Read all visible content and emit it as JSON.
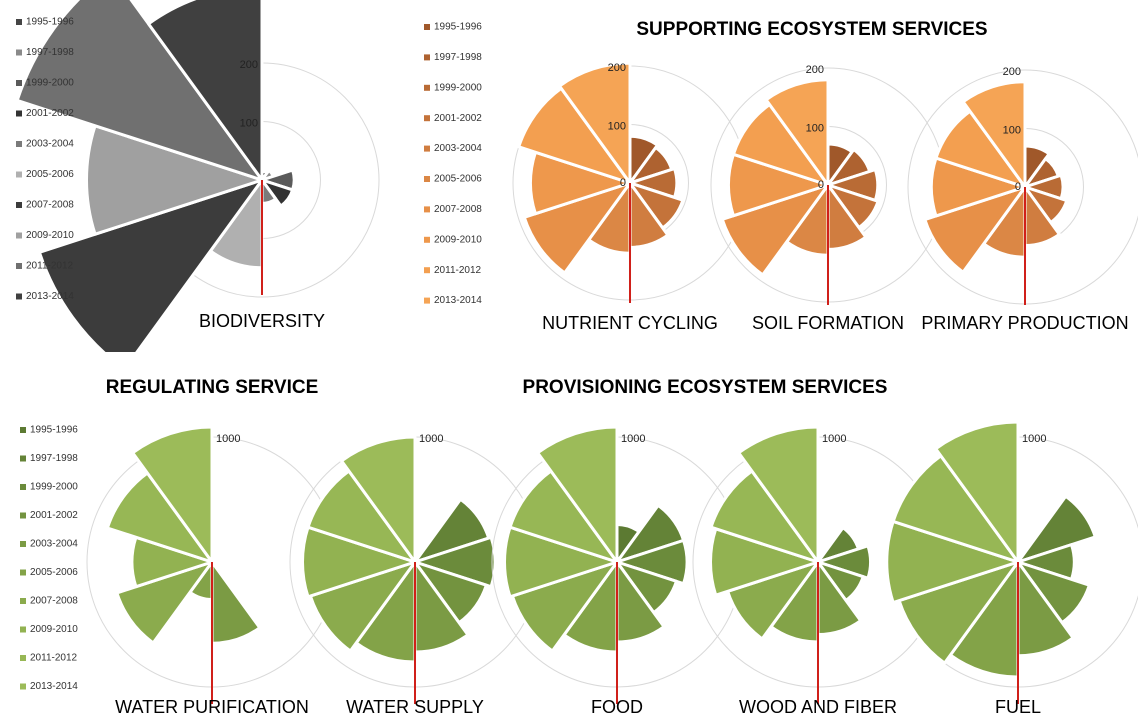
{
  "headings": [
    "SUPPORTING ECOSYSTEM SERVICES",
    "REGULATING SERVICE",
    "PROVISIONING ECOSYSTEM SERVICES"
  ],
  "chart_data": [
    {
      "type": "polar-bar",
      "title": "BIODIVERSITY",
      "categories": [
        "1995-1996",
        "1997-1998",
        "1999-2000",
        "2001-2002",
        "2003-2004",
        "2005-2006",
        "2007-2008",
        "2009-2010",
        "2011-2012",
        "2013-2014"
      ],
      "colors": [
        "#454545",
        "#8a8a8a",
        "#5a5a5a",
        "#333333",
        "#7a7a7a",
        "#b0b0b0",
        "#3c3c3c",
        "#a0a0a0",
        "#707070",
        "#404040"
      ],
      "values": [
        15,
        20,
        55,
        55,
        40,
        150,
        400,
        300,
        440,
        330
      ],
      "ylim": [
        0,
        200
      ],
      "yticks": [
        100,
        200
      ]
    },
    {
      "type": "polar-bar",
      "title": "NUTRIENT CYCLING",
      "categories": [
        "1995-1996",
        "1997-1998",
        "1999-2000",
        "2001-2002",
        "2003-2004",
        "2005-2006",
        "2007-2008",
        "2009-2010",
        "2011-2012",
        "2013-2014"
      ],
      "colors": [
        "#a0582a",
        "#ae6230",
        "#b96b35",
        "#c4733a",
        "#d07d40",
        "#db8745",
        "#e79048",
        "#ee984c",
        "#f39f50",
        "#f5a455"
      ],
      "values": [
        80,
        75,
        80,
        95,
        110,
        120,
        190,
        170,
        200,
        205
      ],
      "ylim": [
        0,
        200
      ],
      "yticks": [
        0,
        100,
        200
      ]
    },
    {
      "type": "polar-bar",
      "title": "SOIL FORMATION",
      "categories": [
        "1995-1996",
        "1997-1998",
        "1999-2000",
        "2001-2002",
        "2003-2004",
        "2005-2006",
        "2007-2008",
        "2009-2010",
        "2011-2012",
        "2013-2014"
      ],
      "colors": [
        "#a0582a",
        "#ae6230",
        "#b96b35",
        "#c4733a",
        "#d07d40",
        "#db8745",
        "#e79048",
        "#ee984c",
        "#f39f50",
        "#f5a455"
      ],
      "values": [
        70,
        75,
        85,
        90,
        110,
        120,
        190,
        170,
        170,
        180
      ],
      "ylim": [
        0,
        200
      ],
      "yticks": [
        0,
        100,
        200
      ]
    },
    {
      "type": "polar-bar",
      "title": "PRIMARY PRODUCTION",
      "categories": [
        "1995-1996",
        "1997-1998",
        "1999-2000",
        "2001-2002",
        "2003-2004",
        "2005-2006",
        "2007-2008",
        "2009-2010",
        "2011-2012",
        "2013-2014"
      ],
      "colors": [
        "#a0582a",
        "#ae6230",
        "#b96b35",
        "#c4733a",
        "#d07d40",
        "#db8745",
        "#e79048",
        "#ee984c",
        "#f39f50",
        "#f5a455"
      ],
      "values": [
        70,
        60,
        65,
        75,
        100,
        120,
        180,
        160,
        160,
        180
      ],
      "ylim": [
        0,
        200
      ],
      "yticks": [
        0,
        100,
        200
      ]
    },
    {
      "type": "polar-bar",
      "title": "WATER PURIFICATION",
      "categories": [
        "1995-1996",
        "1997-1998",
        "1999-2000",
        "2001-2002",
        "2003-2004",
        "2005-2006",
        "2007-2008",
        "2009-2010",
        "2011-2012",
        "2013-2014"
      ],
      "colors": [
        "#5c7a32",
        "#648337",
        "#6b8b3b",
        "#73933f",
        "#7b9b44",
        "#83a348",
        "#8bab4d",
        "#92b251",
        "#97b755",
        "#9cbb59"
      ],
      "values": [
        0,
        0,
        0,
        0,
        650,
        300,
        800,
        640,
        880,
        1080
      ],
      "ylim": [
        0,
        1000
      ],
      "yticks": [
        1000
      ]
    },
    {
      "type": "polar-bar",
      "title": "WATER SUPPLY",
      "categories": [
        "1995-1996",
        "1997-1998",
        "1999-2000",
        "2001-2002",
        "2003-2004",
        "2005-2006",
        "2007-2008",
        "2009-2010",
        "2011-2012",
        "2013-2014"
      ],
      "colors": [
        "#5c7a32",
        "#648337",
        "#6b8b3b",
        "#73933f",
        "#7b9b44",
        "#83a348",
        "#8bab4d",
        "#92b251",
        "#97b755",
        "#9cbb59"
      ],
      "values": [
        0,
        620,
        640,
        600,
        720,
        800,
        880,
        900,
        900,
        1000
      ],
      "ylim": [
        0,
        1000
      ],
      "yticks": [
        1000
      ]
    },
    {
      "type": "polar-bar",
      "title": "FOOD",
      "categories": [
        "1995-1996",
        "1997-1998",
        "1999-2000",
        "2001-2002",
        "2003-2004",
        "2005-2006",
        "2007-2008",
        "2009-2010",
        "2011-2012",
        "2013-2014"
      ],
      "colors": [
        "#5c7a32",
        "#648337",
        "#6b8b3b",
        "#73933f",
        "#7b9b44",
        "#83a348",
        "#8bab4d",
        "#92b251",
        "#97b755",
        "#9cbb59"
      ],
      "values": [
        300,
        560,
        560,
        500,
        640,
        720,
        880,
        900,
        900,
        1080
      ],
      "ylim": [
        0,
        1000
      ],
      "yticks": [
        1000
      ]
    },
    {
      "type": "polar-bar",
      "title": "WOOD AND FIBER",
      "categories": [
        "1995-1996",
        "1997-1998",
        "1999-2000",
        "2001-2002",
        "2003-2004",
        "2005-2006",
        "2007-2008",
        "2009-2010",
        "2011-2012",
        "2013-2014"
      ],
      "colors": [
        "#5c7a32",
        "#648337",
        "#6b8b3b",
        "#73933f",
        "#7b9b44",
        "#83a348",
        "#8bab4d",
        "#92b251",
        "#97b755",
        "#9cbb59"
      ],
      "values": [
        0,
        340,
        420,
        380,
        580,
        640,
        760,
        860,
        900,
        1080
      ],
      "ylim": [
        0,
        1000
      ],
      "yticks": [
        1000
      ]
    },
    {
      "type": "polar-bar",
      "title": "FUEL",
      "categories": [
        "1995-1996",
        "1997-1998",
        "1999-2000",
        "2001-2002",
        "2003-2004",
        "2005-2006",
        "2007-2008",
        "2009-2010",
        "2011-2012",
        "2013-2014"
      ],
      "colors": [
        "#5c7a32",
        "#648337",
        "#6b8b3b",
        "#73933f",
        "#7b9b44",
        "#83a348",
        "#8bab4d",
        "#92b251",
        "#97b755",
        "#9cbb59"
      ],
      "values": [
        0,
        650,
        450,
        600,
        750,
        920,
        1000,
        1050,
        1050,
        1120
      ],
      "ylim": [
        0,
        1000
      ],
      "yticks": [
        1000
      ]
    }
  ]
}
